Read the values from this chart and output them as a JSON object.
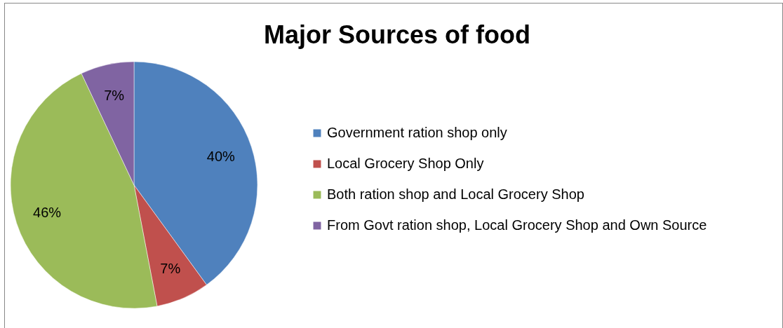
{
  "chart_data": {
    "type": "pie",
    "title": "Major Sources of food",
    "categories": [
      "Government ration shop only",
      "Local Grocery Shop Only",
      "Both ration shop and Local Grocery Shop",
      "From Govt ration shop, Local Grocery Shop and Own Source"
    ],
    "values": [
      40,
      7,
      46,
      7
    ],
    "colors": [
      "#4f81bd",
      "#c0504d",
      "#9bbb59",
      "#8064a2"
    ],
    "value_labels": [
      "40%",
      "7%",
      "46%",
      "7%"
    ],
    "legend": "right"
  }
}
